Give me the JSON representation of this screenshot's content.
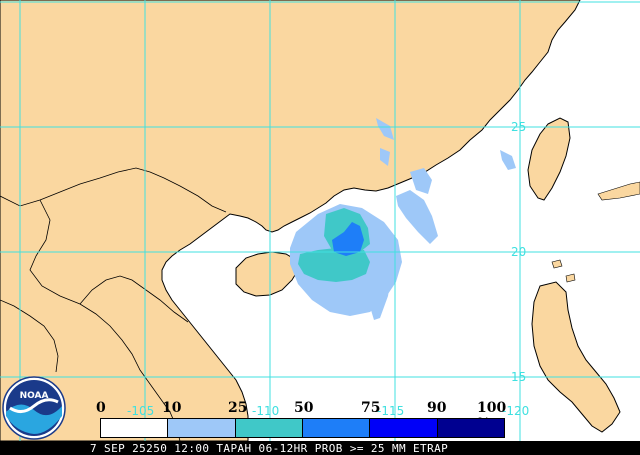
{
  "map": {
    "colors": {
      "land": "#fad7a0",
      "ocean": "#ffffff",
      "grid": "#40e0e0",
      "coast": "#000000",
      "lat_label": "#40e0e0"
    },
    "lat_labels": [
      "25",
      "20",
      "15"
    ],
    "lon_labels": [
      "-105",
      "-110",
      "-115",
      "-120"
    ],
    "rain_prob_colors": [
      "#ffffff",
      "#9ec8f8",
      "#40c8c8",
      "#1e7ef8",
      "#0000f8",
      "#000090"
    ]
  },
  "colorbar": {
    "ticks": [
      "0",
      "10",
      "25",
      "50",
      "75",
      "90",
      "100 %"
    ],
    "colors": [
      "#ffffff",
      "#9ec8f8",
      "#40c8c8",
      "#1e7ef8",
      "#0000f8",
      "#000090"
    ]
  },
  "caption": {
    "text": "7 SEP 25250 12:00 TAPAH 06-12HR PROB >= 25 MM ETRAP"
  },
  "logo": {
    "text": "NOAA",
    "icon": "noaa-logo-icon"
  }
}
